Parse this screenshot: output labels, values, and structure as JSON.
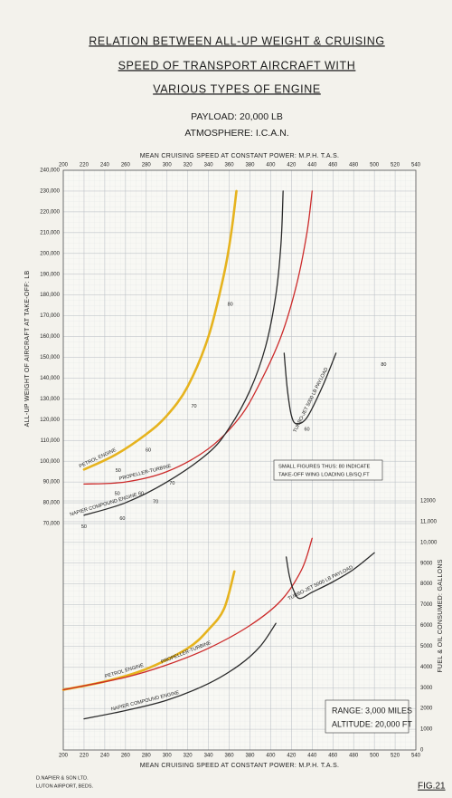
{
  "chart_data": {
    "type": "line",
    "title": [
      "RELATION BETWEEN ALL-UP WEIGHT & CRUISING",
      "SPEED OF TRANSPORT AIRCRAFT WITH",
      "VARIOUS TYPES OF ENGINE"
    ],
    "subtitle": [
      "PAYLOAD: 20,000 LB",
      "ATMOSPHERE: I.C.A.N."
    ],
    "xlabel": "MEAN CRUISING SPEED AT CONSTANT POWER: M.P.H. T.A.S.",
    "ylabel": "ALL-UP WEIGHT OF AIRCRAFT AT TAKE-OFF: LB",
    "y2label": "FUEL & OIL CONSUMED: GALLONS",
    "xlim": [
      200,
      540
    ],
    "xticks": [
      200,
      220,
      240,
      260,
      280,
      300,
      320,
      340,
      360,
      380,
      400,
      420,
      440,
      460,
      480,
      500,
      520,
      540
    ],
    "ylim": [
      70000,
      240000
    ],
    "yticks": [
      {
        "value": 70000,
        "label": "70,000"
      },
      {
        "value": 80000,
        "label": "80,000"
      },
      {
        "value": 90000,
        "label": "90,000"
      },
      {
        "value": 100000,
        "label": "100,000"
      },
      {
        "value": 110000,
        "label": "110,000"
      },
      {
        "value": 120000,
        "label": "120,000"
      },
      {
        "value": 130000,
        "label": "130,000"
      },
      {
        "value": 140000,
        "label": "140,000"
      },
      {
        "value": 150000,
        "label": "150,000"
      },
      {
        "value": 160000,
        "label": "160,000"
      },
      {
        "value": 170000,
        "label": "170,000"
      },
      {
        "value": 180000,
        "label": "180,000"
      },
      {
        "value": 190000,
        "label": "190,000"
      },
      {
        "value": 200000,
        "label": "200,000"
      },
      {
        "value": 210000,
        "label": "210,000"
      },
      {
        "value": 220000,
        "label": "220,000"
      },
      {
        "value": 230000,
        "label": "230,000"
      },
      {
        "value": 240000,
        "label": "240,000"
      }
    ],
    "y2lim": [
      0,
      12000
    ],
    "y2ticks": [
      0,
      1000,
      2000,
      3000,
      4000,
      5000,
      6000,
      7000,
      8000,
      9000,
      {
        "value": 10000,
        "label": "10,000"
      },
      {
        "value": 11000,
        "label": "11,000"
      },
      12000
    ],
    "grid": true,
    "series": [
      {
        "name": "PETROL ENGINE",
        "color": "#e6b31e",
        "axis": "y",
        "x": [
          220,
          250,
          280,
          300,
          320,
          340,
          355,
          362,
          367
        ],
        "values": [
          96000,
          103000,
          113000,
          122000,
          136000,
          160000,
          190000,
          210000,
          230000
        ]
      },
      {
        "name": "PROPELLER-TURBINE",
        "color": "#cc2a2a",
        "axis": "y",
        "x": [
          220,
          260,
          300,
          340,
          370,
          390,
          410,
          425,
          435,
          440
        ],
        "values": [
          89000,
          90000,
          95000,
          106000,
          121000,
          138000,
          160000,
          185000,
          210000,
          230000
        ]
      },
      {
        "name": "NAPIER COMPOUND ENGINE",
        "color": "#2a2a2a",
        "axis": "y",
        "x": [
          220,
          260,
          300,
          340,
          360,
          380,
          395,
          405,
          410,
          412
        ],
        "values": [
          74000,
          80000,
          90000,
          104000,
          116000,
          134000,
          155000,
          180000,
          205000,
          230000
        ]
      },
      {
        "name": "TURBO-JET 5000 LB PAYLOAD",
        "color": "#2a2a2a",
        "axis": "y",
        "x": [
          413,
          416,
          420,
          425,
          435,
          450,
          463
        ],
        "values": [
          152000,
          135000,
          122000,
          118000,
          121000,
          136000,
          152000
        ]
      },
      {
        "name": "PETROL ENGINE",
        "color": "#e6b31e",
        "axis": "y2",
        "x": [
          200,
          240,
          280,
          320,
          340,
          355,
          365
        ],
        "values": [
          2900,
          3300,
          3900,
          4900,
          5800,
          6800,
          8600
        ]
      },
      {
        "name": "PROPELLER-TURBINE",
        "color": "#cc2a2a",
        "axis": "y2",
        "x": [
          200,
          260,
          300,
          340,
          380,
          410,
          430,
          440
        ],
        "values": [
          2900,
          3500,
          4100,
          4900,
          6000,
          7200,
          8700,
          10200
        ]
      },
      {
        "name": "NAPIER COMPOUND ENGINE",
        "color": "#2a2a2a",
        "axis": "y2",
        "x": [
          220,
          260,
          300,
          340,
          370,
          390,
          405
        ],
        "values": [
          1500,
          1900,
          2400,
          3200,
          4100,
          5000,
          6100
        ]
      },
      {
        "name": "TURBO-JET 5000 LB PAYLOAD",
        "color": "#2a2a2a",
        "axis": "y2",
        "x": [
          415,
          418,
          422,
          428,
          440,
          460,
          480,
          500
        ],
        "values": [
          9300,
          8400,
          7700,
          7300,
          7600,
          8100,
          8700,
          9500
        ]
      }
    ],
    "annotations": [
      {
        "text": "50",
        "x": 253,
        "y": 98000
      },
      {
        "text": "60",
        "x": 282,
        "y": 108000
      },
      {
        "text": "70",
        "x": 326,
        "y": 129000
      },
      {
        "text": "80",
        "x": 361,
        "y": 178000
      },
      {
        "text": "50",
        "x": 252,
        "y": 87000
      },
      {
        "text": "60",
        "x": 275,
        "y": 87000
      },
      {
        "text": "70",
        "x": 305,
        "y": 92000
      },
      {
        "text": "50",
        "x": 220,
        "y": 71000
      },
      {
        "text": "60",
        "x": 257,
        "y": 75000
      },
      {
        "text": "70",
        "x": 289,
        "y": 83000
      },
      {
        "text": "60",
        "x": 435,
        "y": 118000
      },
      {
        "text": "80",
        "x": 509,
        "y": 149000
      }
    ],
    "note": [
      "SMALL FIGURES THUS: 80 INDICATE",
      "TAKE-OFF WING LOADING LB/SQ.FT"
    ],
    "conditions": [
      "RANGE: 3,000 MILES",
      "ALTITUDE: 20,000 FT"
    ],
    "footer": [
      "D.NAPIER & SON LTD.",
      "LUTON AIRPORT, BEDS."
    ],
    "figure": "FIG.21"
  }
}
